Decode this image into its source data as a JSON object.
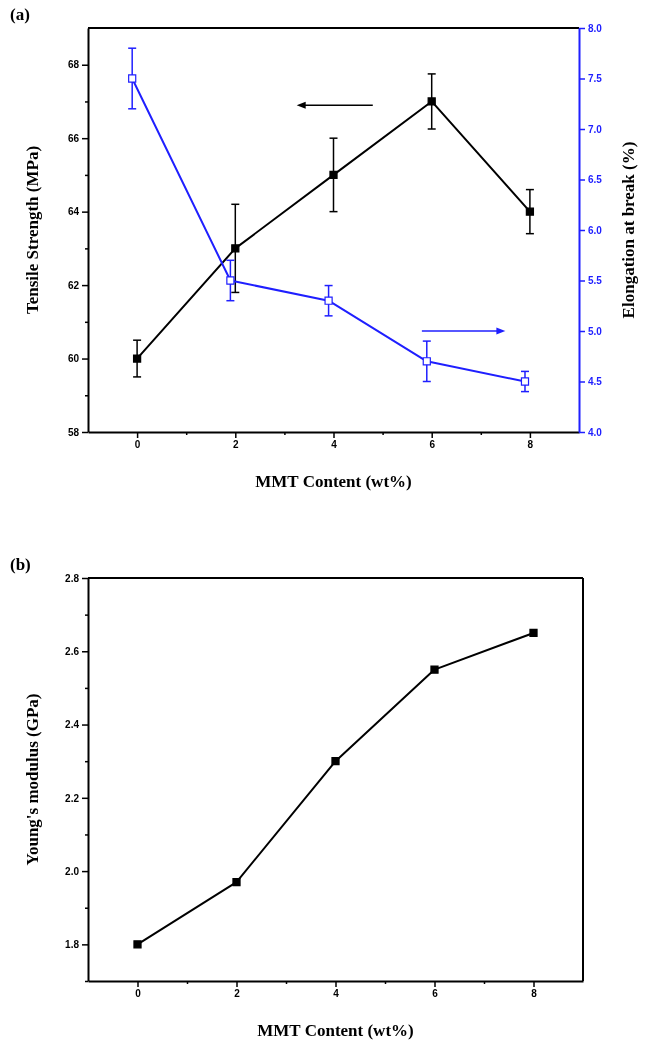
{
  "chart_data": [
    {
      "type": "line",
      "title": "(a)",
      "xlabel": "MMT Content (wt%)",
      "ylabel": "Tensile Strength (MPa)",
      "y2label": "Elongation at break (%)",
      "x": [
        0,
        2,
        4,
        6,
        8
      ],
      "series": [
        {
          "color": "#000000",
          "values": [
            60,
            63,
            65,
            67,
            64
          ],
          "errors": [
            [
              59.5,
              60.5
            ],
            [
              61.8,
              64.2
            ],
            [
              64,
              66
            ],
            [
              66.25,
              67.75
            ],
            [
              63.4,
              64.6
            ]
          ]
        },
        {
          "color": "#1f1fff",
          "axis": "y2",
          "x": [
            -0.1,
            1.9,
            3.9,
            5.9,
            7.9
          ],
          "values": [
            7.5,
            5.5,
            5.3,
            4.7,
            4.5
          ],
          "errors": [
            [
              7.2,
              7.8
            ],
            [
              5.3,
              5.7
            ],
            [
              5.15,
              5.45
            ],
            [
              4.5,
              4.9
            ],
            [
              4.4,
              4.6
            ]
          ]
        }
      ],
      "xlim": [
        -1,
        9
      ],
      "xticks": [
        0,
        {
          "value": 1,
          "label": null
        },
        2,
        {
          "value": 3,
          "label": null
        },
        4,
        {
          "value": 5,
          "label": null
        },
        6,
        {
          "value": 7,
          "label": null
        },
        8
      ],
      "ylim": [
        58,
        69
      ],
      "yticks": [
        58,
        {
          "value": 59,
          "label": null
        },
        60,
        {
          "value": 61,
          "label": null
        },
        62,
        {
          "value": 63,
          "label": null
        },
        64,
        {
          "value": 65,
          "label": null
        },
        66,
        {
          "value": 67,
          "label": null
        },
        68
      ],
      "y2lim": [
        4,
        8
      ],
      "y2ticks": [
        {
          "value": 4,
          "label": "4.0"
        },
        {
          "value": 4.5,
          "label": "4.5"
        },
        {
          "value": 5,
          "label": "5.0"
        },
        {
          "value": 5.5,
          "label": "5.5"
        },
        {
          "value": 6,
          "label": "6.0"
        },
        {
          "value": 6.5,
          "label": "6.5"
        },
        {
          "value": 7,
          "label": "7.0"
        },
        {
          "value": 7.5,
          "label": "7.5"
        },
        {
          "value": 8,
          "label": "8.0"
        }
      ],
      "marker": "square",
      "grid": false
    },
    {
      "type": "line",
      "title": "(b)",
      "xlabel": "MMT Content (wt%)",
      "ylabel": "Young's modulus (GPa)",
      "x": [
        0,
        2,
        4,
        6,
        8
      ],
      "series": [
        {
          "color": "#000000",
          "values": [
            1.8,
            1.97,
            2.3,
            2.55,
            2.65
          ]
        }
      ],
      "xlim": [
        -1,
        9
      ],
      "xticks": [
        0,
        {
          "value": 1,
          "label": null
        },
        2,
        {
          "value": 3,
          "label": null
        },
        4,
        {
          "value": 5,
          "label": null
        },
        6,
        {
          "value": 7,
          "label": null
        },
        8
      ],
      "ylim": [
        1.7,
        2.8
      ],
      "yticks": [
        {
          "value": 1.7,
          "label": null
        },
        1.8,
        {
          "value": 1.9,
          "label": null
        },
        {
          "value": 2.0,
          "label": "2.0"
        },
        {
          "value": 2.1,
          "label": null
        },
        2.2,
        {
          "value": 2.3,
          "label": null
        },
        2.4,
        {
          "value": 2.5,
          "label": null
        },
        2.6,
        {
          "value": 2.7,
          "label": null
        },
        2.8
      ],
      "marker": "square",
      "grid": false
    }
  ]
}
